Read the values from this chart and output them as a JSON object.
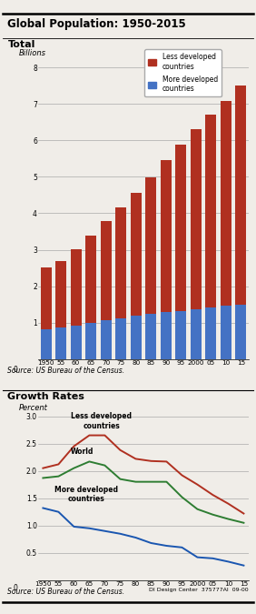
{
  "title": "Global Population: 1950-2015",
  "bar_chart": {
    "title": "Total",
    "ylabel": "Billions",
    "source": "Source: US Bureau of the Census.",
    "xlabels": [
      "1950",
      "55",
      "60",
      "65",
      "70",
      "75",
      "80",
      "85",
      "90",
      "95",
      "2000",
      "05",
      "10",
      "15"
    ],
    "more_developed": [
      0.81,
      0.87,
      0.93,
      1.0,
      1.07,
      1.13,
      1.19,
      1.24,
      1.29,
      1.33,
      1.38,
      1.42,
      1.46,
      1.5
    ],
    "less_developed": [
      1.7,
      1.82,
      2.08,
      2.38,
      2.72,
      3.04,
      3.36,
      3.74,
      4.16,
      4.55,
      4.92,
      5.28,
      5.63,
      6.0
    ],
    "ylim": [
      0,
      8.5
    ],
    "yticks": [
      0,
      1,
      2,
      3,
      4,
      5,
      6,
      7,
      8
    ],
    "color_less": "#b03020",
    "color_more": "#4472c4",
    "legend_less": "Less developed\ncountries",
    "legend_more": "More developed\ncountries"
  },
  "line_chart": {
    "title": "Growth Rates",
    "ylabel": "Percent",
    "source": "Source: US Bureau of the Census.",
    "footer": "DI Design Center  375777AI  09-00",
    "xlabels": [
      "1950",
      "55",
      "60",
      "65",
      "70",
      "75",
      "80",
      "85",
      "90",
      "95",
      "2000",
      "05",
      "10",
      "15"
    ],
    "world": [
      1.87,
      1.9,
      2.05,
      2.17,
      2.1,
      1.85,
      1.8,
      1.8,
      1.8,
      1.52,
      1.3,
      1.2,
      1.12,
      1.05
    ],
    "less_developed": [
      2.05,
      2.12,
      2.45,
      2.65,
      2.65,
      2.38,
      2.22,
      2.18,
      2.17,
      1.92,
      1.75,
      1.56,
      1.4,
      1.22
    ],
    "more_developed": [
      1.32,
      1.25,
      0.98,
      0.95,
      0.9,
      0.85,
      0.78,
      0.68,
      0.63,
      0.6,
      0.42,
      0.4,
      0.34,
      0.27
    ],
    "ylim": [
      0,
      3.2
    ],
    "yticks": [
      0,
      0.5,
      1.0,
      1.5,
      2.0,
      2.5,
      3.0
    ],
    "color_world": "#2e7d32",
    "color_less": "#b03020",
    "color_more": "#1a56b0",
    "label_world": "World",
    "label_less": "Less developed\ncountries",
    "label_more": "More developed\ncountries"
  },
  "bg_color": "#f0ede8",
  "title_fontsize": 8.5,
  "section_title_fontsize": 8,
  "tick_fontsize": 5.5,
  "source_fontsize": 5.5,
  "ylabel_fontsize": 6
}
